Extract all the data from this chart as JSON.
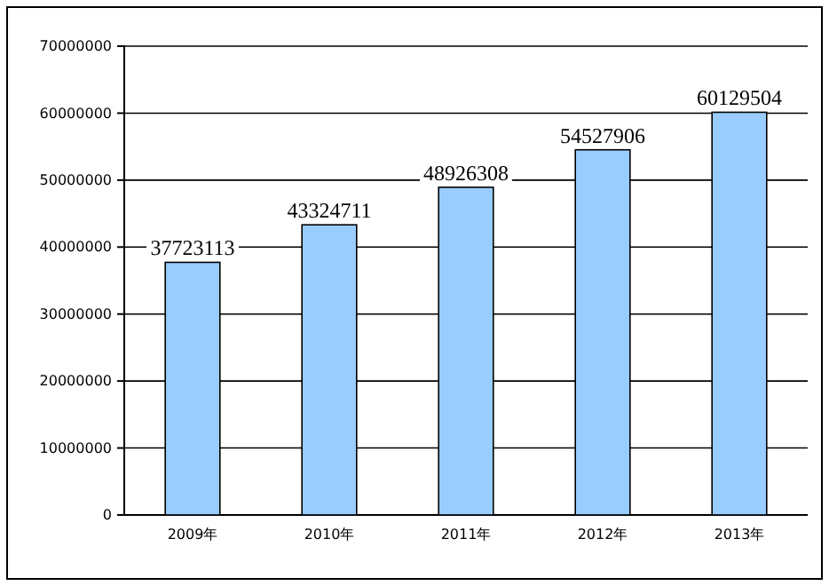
{
  "chart_data": {
    "type": "bar",
    "categories": [
      "2009年",
      "2010年",
      "2011年",
      "2012年",
      "2013年"
    ],
    "values": [
      37723113,
      43324711,
      48926308,
      54527906,
      60129504
    ],
    "color": "#99ccff",
    "ylim": [
      0,
      70000000
    ],
    "yticks": [
      0,
      10000000,
      20000000,
      30000000,
      40000000,
      50000000,
      60000000,
      70000000
    ],
    "grid": "y",
    "data_labels": true
  }
}
